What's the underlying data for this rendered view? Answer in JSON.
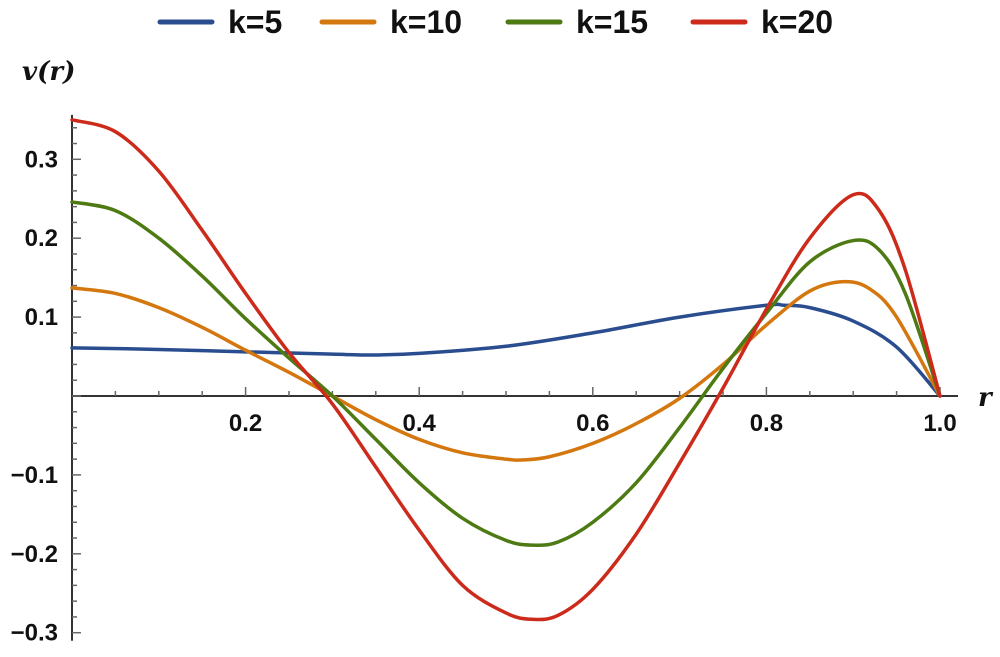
{
  "chart_data": {
    "type": "line",
    "xlabel": "r",
    "ylabel": "v(r)",
    "xlim": [
      0,
      1.0
    ],
    "ylim": [
      -0.3,
      0.35
    ],
    "x_ticks": [
      {
        "value": 0.2,
        "label": "0.2"
      },
      {
        "value": 0.4,
        "label": "0.4"
      },
      {
        "value": 0.6,
        "label": "0.6"
      },
      {
        "value": 0.8,
        "label": "0.8"
      },
      {
        "value": 1.0,
        "label": "1.0"
      }
    ],
    "y_ticks": [
      {
        "value": 0.3,
        "label": "0.3"
      },
      {
        "value": 0.2,
        "label": "0.2"
      },
      {
        "value": 0.1,
        "label": "0.1"
      },
      {
        "value": -0.1,
        "label": "−0.1"
      },
      {
        "value": -0.2,
        "label": "−0.2"
      },
      {
        "value": -0.3,
        "label": "−0.3"
      }
    ],
    "legend_position": "top",
    "grid": false,
    "series": [
      {
        "name": "k=5",
        "color": "#2a4d8f",
        "x": [
          0,
          0.1,
          0.2,
          0.3,
          0.35,
          0.4,
          0.5,
          0.6,
          0.7,
          0.8,
          0.82,
          0.85,
          0.9,
          0.95,
          1.0
        ],
        "y": [
          0.061,
          0.059,
          0.056,
          0.053,
          0.052,
          0.054,
          0.063,
          0.08,
          0.1,
          0.115,
          0.115,
          0.112,
          0.095,
          0.062,
          0.0
        ]
      },
      {
        "name": "k=10",
        "color": "#d4770e",
        "x": [
          0,
          0.05,
          0.1,
          0.15,
          0.2,
          0.25,
          0.3,
          0.35,
          0.4,
          0.45,
          0.5,
          0.52,
          0.55,
          0.6,
          0.65,
          0.7,
          0.75,
          0.8,
          0.85,
          0.89,
          0.92,
          0.95,
          1.0
        ],
        "y": [
          0.137,
          0.13,
          0.112,
          0.087,
          0.058,
          0.03,
          0.0,
          -0.03,
          -0.055,
          -0.072,
          -0.08,
          -0.081,
          -0.077,
          -0.06,
          -0.035,
          -0.003,
          0.04,
          0.09,
          0.133,
          0.145,
          0.135,
          0.1,
          0.0
        ]
      },
      {
        "name": "k=15",
        "color": "#4d7a12",
        "x": [
          0,
          0.05,
          0.1,
          0.15,
          0.2,
          0.25,
          0.3,
          0.35,
          0.4,
          0.45,
          0.5,
          0.53,
          0.56,
          0.6,
          0.65,
          0.7,
          0.75,
          0.8,
          0.85,
          0.9,
          0.93,
          0.96,
          1.0
        ],
        "y": [
          0.246,
          0.235,
          0.2,
          0.152,
          0.098,
          0.048,
          0.0,
          -0.055,
          -0.11,
          -0.155,
          -0.183,
          -0.189,
          -0.185,
          -0.16,
          -0.11,
          -0.04,
          0.035,
          0.105,
          0.17,
          0.197,
          0.185,
          0.13,
          0.0
        ]
      },
      {
        "name": "k=20",
        "color": "#cc2a1a",
        "x": [
          0,
          0.05,
          0.1,
          0.15,
          0.2,
          0.25,
          0.3,
          0.35,
          0.4,
          0.45,
          0.5,
          0.53,
          0.56,
          0.6,
          0.65,
          0.7,
          0.75,
          0.8,
          0.85,
          0.9,
          0.93,
          0.96,
          1.0
        ],
        "y": [
          0.35,
          0.335,
          0.285,
          0.21,
          0.13,
          0.055,
          -0.01,
          -0.09,
          -0.17,
          -0.24,
          -0.275,
          -0.283,
          -0.278,
          -0.245,
          -0.175,
          -0.085,
          0.01,
          0.11,
          0.2,
          0.255,
          0.235,
          0.16,
          0.0
        ]
      }
    ]
  }
}
